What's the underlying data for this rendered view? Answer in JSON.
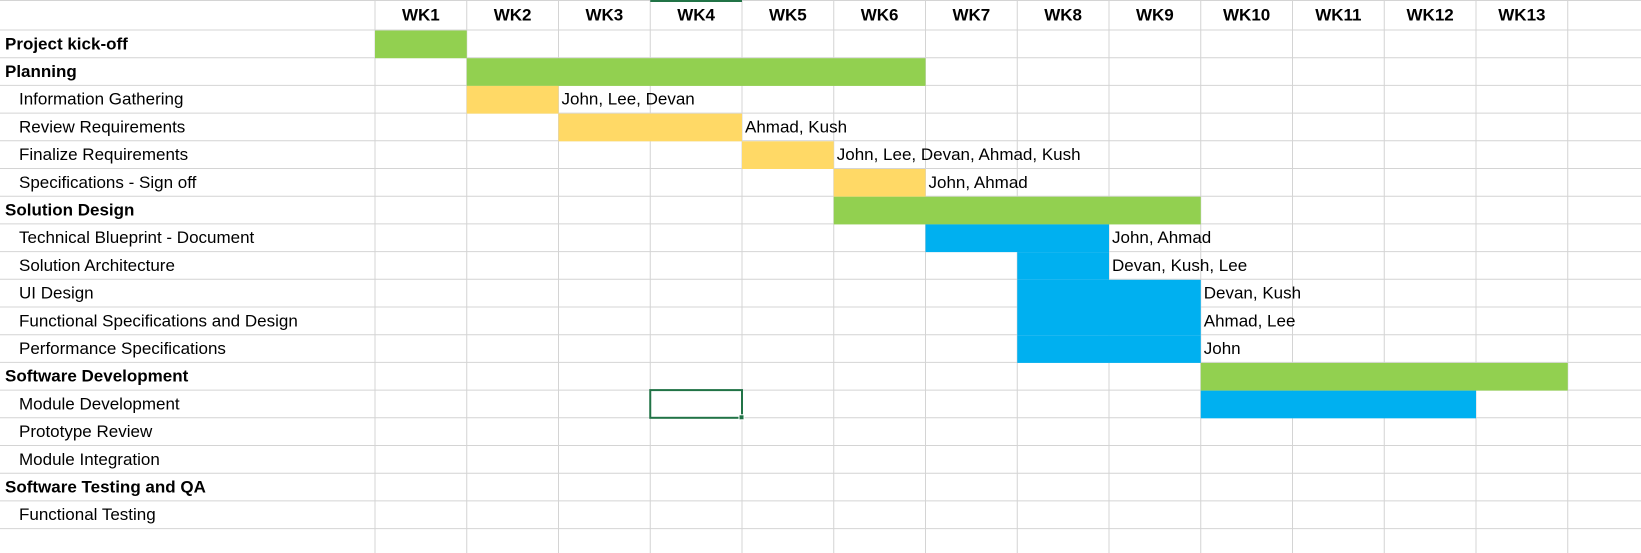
{
  "columns": [
    "WK1",
    "WK2",
    "WK3",
    "WK4",
    "WK5",
    "WK6",
    "WK7",
    "WK8",
    "WK9",
    "WK10",
    "WK11",
    "WK12",
    "WK13"
  ],
  "rows": [
    {
      "task": "Project kick-off",
      "phase": true,
      "start": 1,
      "end": 1,
      "color": "#92d050"
    },
    {
      "task": "Planning",
      "phase": true,
      "start": 2,
      "end": 6,
      "color": "#92d050"
    },
    {
      "task": "Information Gathering",
      "phase": false,
      "start": 2,
      "end": 2,
      "color": "#ffd966",
      "assignees": "John, Lee, Devan"
    },
    {
      "task": "Review Requirements",
      "phase": false,
      "start": 3,
      "end": 4,
      "color": "#ffd966",
      "assignees": "Ahmad, Kush"
    },
    {
      "task": "Finalize Requirements",
      "phase": false,
      "start": 5,
      "end": 5,
      "color": "#ffd966",
      "assignees": "John, Lee, Devan, Ahmad, Kush"
    },
    {
      "task": "Specifications - Sign off",
      "phase": false,
      "start": 6,
      "end": 6,
      "color": "#ffd966",
      "assignees": "John, Ahmad"
    },
    {
      "task": "Solution Design",
      "phase": true,
      "start": 6,
      "end": 9,
      "color": "#92d050"
    },
    {
      "task": "Technical Blueprint - Document",
      "phase": false,
      "start": 7,
      "end": 8,
      "color": "#00b0f0",
      "assignees": "John, Ahmad"
    },
    {
      "task": "Solution Architecture",
      "phase": false,
      "start": 8,
      "end": 8,
      "color": "#00b0f0",
      "assignees": "Devan, Kush, Lee"
    },
    {
      "task": "UI Design",
      "phase": false,
      "start": 8,
      "end": 9,
      "color": "#00b0f0",
      "assignees": "Devan, Kush"
    },
    {
      "task": "Functional Specifications and Design",
      "phase": false,
      "start": 8,
      "end": 9,
      "color": "#00b0f0",
      "assignees": "Ahmad, Lee"
    },
    {
      "task": "Performance Specifications",
      "phase": false,
      "start": 8,
      "end": 9,
      "color": "#00b0f0",
      "assignees": "John"
    },
    {
      "task": "Software Development",
      "phase": true,
      "start": 10,
      "end": 13,
      "color": "#92d050"
    },
    {
      "task": "Module Development",
      "phase": false,
      "start": 10,
      "end": 12,
      "color": "#00b0f0"
    },
    {
      "task": "Prototype Review",
      "phase": false
    },
    {
      "task": "Module Integration",
      "phase": false
    },
    {
      "task": "Software Testing and QA",
      "phase": true
    },
    {
      "task": "Functional Testing",
      "phase": false
    }
  ]
}
